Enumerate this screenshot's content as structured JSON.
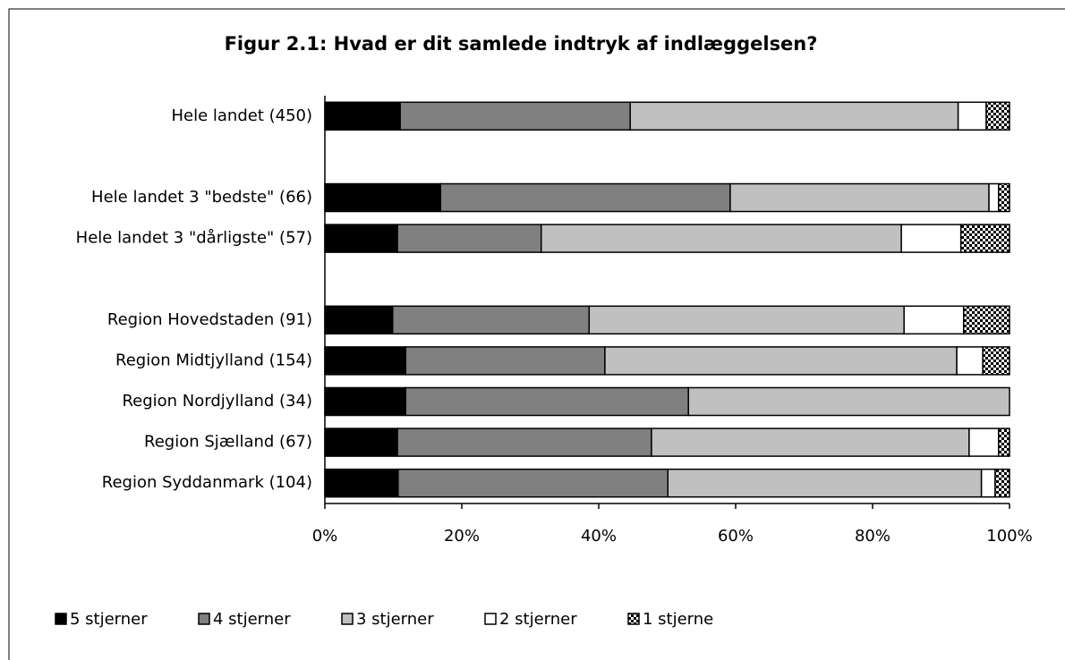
{
  "chart_data": {
    "type": "stacked_barh",
    "title": "Figur 2.1: Hvad er dit samlede indtryk af indlæggelsen?",
    "categories": [
      "Hele landet  (450)",
      null,
      "Hele landet 3 \"bedste\" (66)",
      "Hele landet 3 \"dårligste\" (57)",
      null,
      "Region Hovedstaden (91)",
      "Region Midtjylland (154)",
      "Region Nordjylland (34)",
      "Region Sjælland (67)",
      "Region Syddanmark (104)"
    ],
    "series": [
      {
        "name": "5 stjerner",
        "color": "#000000",
        "values": [
          11.0,
          null,
          16.9,
          10.6,
          null,
          9.9,
          11.8,
          11.8,
          10.6,
          10.7
        ]
      },
      {
        "name": "4 stjerner",
        "color": "#808080",
        "values": [
          33.6,
          null,
          42.3,
          21.0,
          null,
          28.7,
          29.1,
          41.3,
          37.1,
          39.4
        ]
      },
      {
        "name": "3 stjerner",
        "color": "#c0c0c0",
        "values": [
          47.9,
          null,
          37.8,
          52.6,
          null,
          46.0,
          51.4,
          46.9,
          46.4,
          45.8
        ]
      },
      {
        "name": "2 stjerner",
        "color": "#ffffff",
        "values": [
          4.1,
          null,
          1.4,
          8.7,
          null,
          8.7,
          3.8,
          0,
          4.3,
          2.0
        ]
      },
      {
        "name": "1 stjerne",
        "color": "#ffffff",
        "pattern": "checkered",
        "values": [
          3.4,
          null,
          1.6,
          7.1,
          null,
          6.7,
          3.9,
          0,
          1.6,
          2.1
        ]
      }
    ],
    "xlim": [
      0,
      100
    ],
    "xticks": [
      {
        "value": 0,
        "label": "0%"
      },
      {
        "value": 20,
        "label": "20%"
      },
      {
        "value": 40,
        "label": "40%"
      },
      {
        "value": 60,
        "label": "60%"
      },
      {
        "value": 80,
        "label": "80%"
      },
      {
        "value": 100,
        "label": "100%"
      }
    ],
    "legend": "bottom"
  }
}
